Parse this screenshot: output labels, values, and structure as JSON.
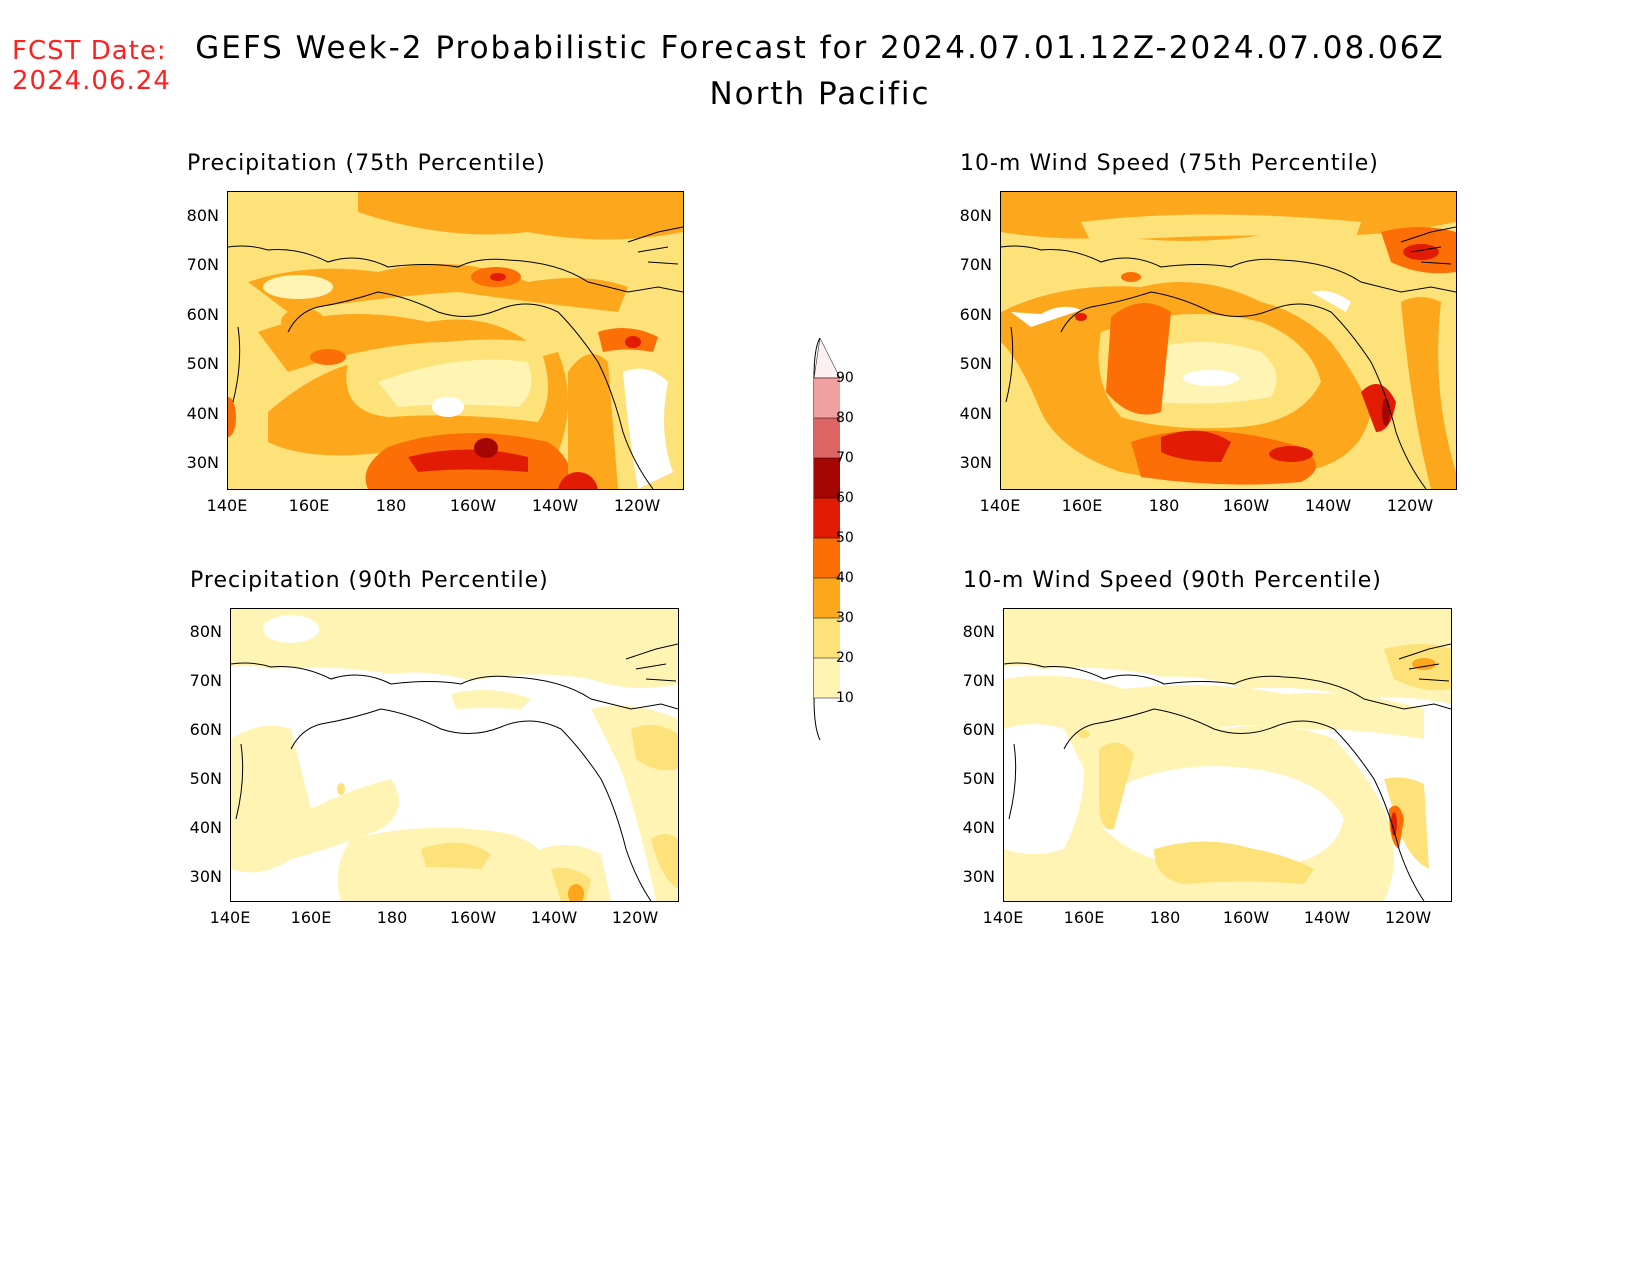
{
  "header": {
    "fcst_label": "FCST Date:",
    "fcst_date": "2024.06.24",
    "title": "GEFS Week-2 Probabilistic Forecast for 2024.07.01.12Z-2024.07.08.06Z",
    "subtitle": "North Pacific"
  },
  "axes": {
    "lat_labels": [
      "80N",
      "70N",
      "60N",
      "50N",
      "40N",
      "30N"
    ],
    "lon_labels": [
      "140E",
      "160E",
      "180",
      "160W",
      "140W",
      "120W"
    ]
  },
  "legend": {
    "levels": [
      "10",
      "20",
      "30",
      "40",
      "50",
      "60",
      "70",
      "80",
      "90"
    ],
    "colors": [
      "#fff4b4",
      "#fde27a",
      "#fca71c",
      "#fc6e06",
      "#e21c04",
      "#a40604",
      "#dc6464",
      "#f0a0a0",
      "#fce2e2"
    ]
  },
  "panels": [
    {
      "id": "precip75",
      "title": "Precipitation (75th Percentile)"
    },
    {
      "id": "wind75",
      "title": "10-m Wind Speed (75th Percentile)"
    },
    {
      "id": "precip90",
      "title": "Precipitation (90th Percentile)"
    },
    {
      "id": "wind90",
      "title": "10-m Wind Speed (90th Percentile)"
    }
  ]
}
